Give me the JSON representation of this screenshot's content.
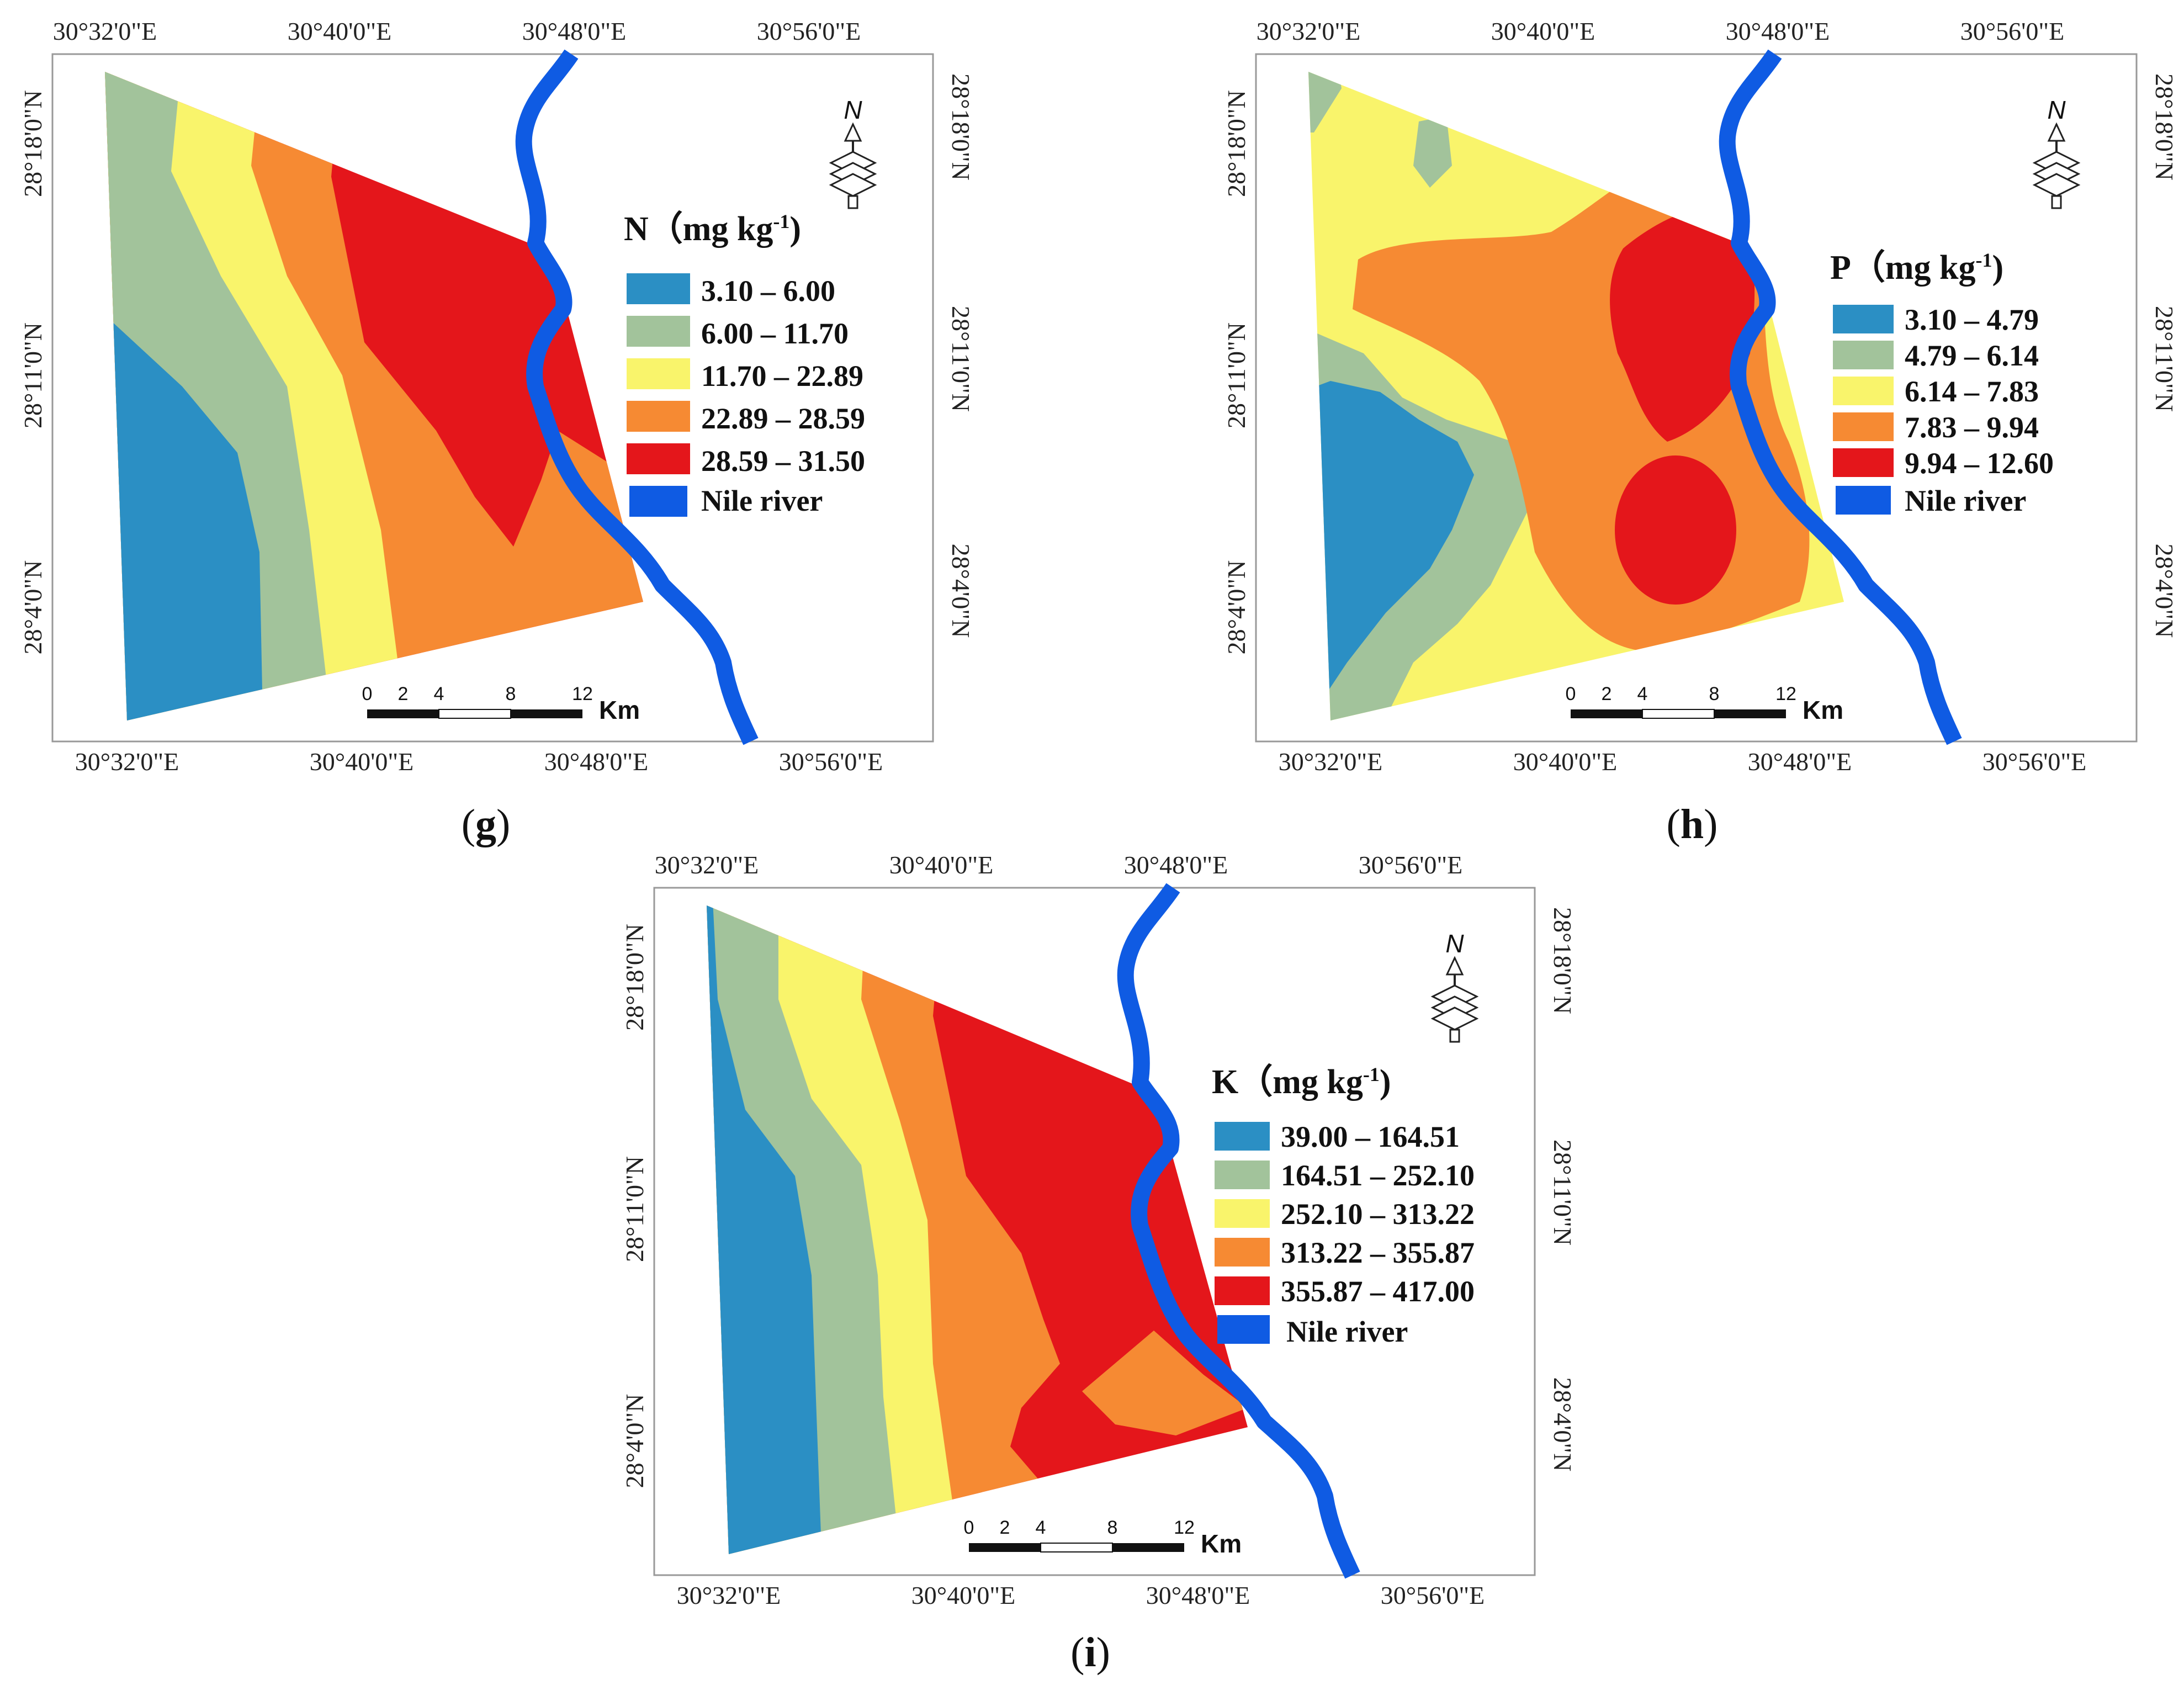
{
  "panels": [
    {
      "id": "g",
      "caption": "g",
      "legend": {
        "title": "N（mg kg",
        "superscript": "-1",
        "title_close": ")",
        "classes": [
          {
            "label": "3.10 – 6.00",
            "color": "#2b8fc4"
          },
          {
            "label": "6.00 – 11.70",
            "color": "#a2c39b"
          },
          {
            "label": "11.70 – 22.89",
            "color": "#f9f46b"
          },
          {
            "label": "22.89 – 28.59",
            "color": "#f68a33"
          },
          {
            "label": "28.59 – 31.50",
            "color": "#e4161b"
          }
        ],
        "river": {
          "label": "Nile river",
          "color": "#0f5be3"
        }
      },
      "top_ticks": [
        "30°32'0\"E",
        "30°40'0\"E",
        "30°48'0\"E",
        "30°56'0\"E"
      ],
      "bottom_ticks": [
        "30°32'0\"E",
        "30°40'0\"E",
        "30°48'0\"E",
        "30°56'0\"E"
      ],
      "left_ticks": [
        "28°18'0\"N",
        "28°11'0\"N",
        "28°4'0\"N"
      ],
      "right_ticks": [
        "28°18'0\"N",
        "28°11'0\"N",
        "28°4'0\"N"
      ],
      "scale": {
        "ticks": [
          "0",
          "2",
          "4",
          "8",
          "12"
        ],
        "unit": "Km"
      },
      "north": "N"
    },
    {
      "id": "h",
      "caption": "h",
      "legend": {
        "title": "P（mg kg",
        "superscript": "-1",
        "title_close": ")",
        "classes": [
          {
            "label": "3.10 – 4.79",
            "color": "#2b8fc4"
          },
          {
            "label": "4.79 – 6.14",
            "color": "#a2c39b"
          },
          {
            "label": "6.14 – 7.83",
            "color": "#f9f46b"
          },
          {
            "label": "7.83 – 9.94",
            "color": "#f68a33"
          },
          {
            "label": "9.94 – 12.60",
            "color": "#e4161b"
          }
        ],
        "river": {
          "label": "Nile river",
          "color": "#0f5be3"
        }
      },
      "top_ticks": [
        "30°32'0\"E",
        "30°40'0\"E",
        "30°48'0\"E",
        "30°56'0\"E"
      ],
      "bottom_ticks": [
        "30°32'0\"E",
        "30°40'0\"E",
        "30°48'0\"E",
        "30°56'0\"E"
      ],
      "left_ticks": [
        "28°18'0\"N",
        "28°11'0\"N",
        "28°4'0\"N"
      ],
      "right_ticks": [
        "28°18'0\"N",
        "28°11'0\"N",
        "28°4'0\"N"
      ],
      "scale": {
        "ticks": [
          "0",
          "2",
          "4",
          "8",
          "12"
        ],
        "unit": "Km"
      },
      "north": "N"
    },
    {
      "id": "i",
      "caption": "i",
      "legend": {
        "title": "K（mg kg",
        "superscript": "-1",
        "title_close": ")",
        "classes": [
          {
            "label": "39.00 – 164.51",
            "color": "#2b8fc4"
          },
          {
            "label": "164.51 – 252.10",
            "color": "#a2c39b"
          },
          {
            "label": "252.10 – 313.22",
            "color": "#f9f46b"
          },
          {
            "label": "313.22 – 355.87",
            "color": "#f68a33"
          },
          {
            "label": "355.87 – 417.00",
            "color": "#e4161b"
          }
        ],
        "river": {
          "label": "Nile river",
          "color": "#0f5be3"
        }
      },
      "top_ticks": [
        "30°32'0\"E",
        "30°40'0\"E",
        "30°48'0\"E",
        "30°56'0\"E"
      ],
      "bottom_ticks": [
        "30°32'0\"E",
        "30°40'0\"E",
        "30°48'0\"E",
        "30°56'0\"E"
      ],
      "left_ticks": [
        "28°18'0\"N",
        "28°11'0\"N",
        "28°4'0\"N"
      ],
      "right_ticks": [
        "28°18'0\"N",
        "28°11'0\"N",
        "28°4'0\"N"
      ],
      "scale": {
        "ticks": [
          "0",
          "2",
          "4",
          "8",
          "12"
        ],
        "unit": "Km"
      },
      "north": "N"
    }
  ]
}
